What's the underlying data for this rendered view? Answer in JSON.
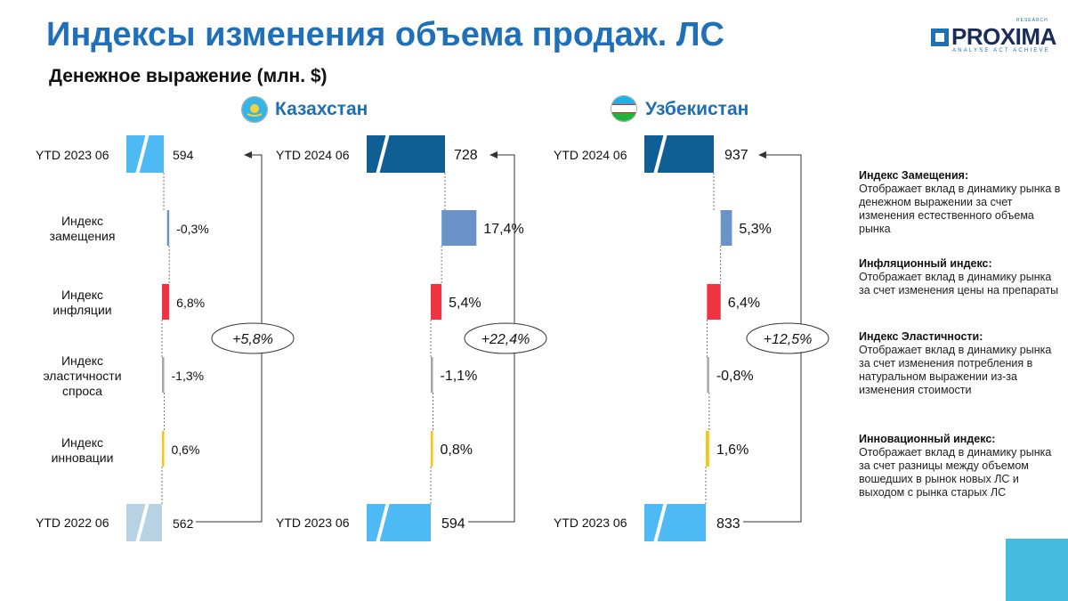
{
  "header": {
    "title": "Индексы изменения объема продаж. ЛС",
    "subtitle": "Денежное выражение (млн. $)"
  },
  "logo": {
    "text": "PROXIMA",
    "tagline": "ANALYSE ACT ACHIEVE",
    "superscript": "RESEARCH"
  },
  "row_labels": {
    "replacement": [
      "Индекс",
      "замещения"
    ],
    "inflation": [
      "Индекс",
      "инфляции"
    ],
    "elasticity": [
      "Индекс",
      "эластичности",
      "спроса"
    ],
    "innovation": [
      "Индекс",
      "инновации"
    ]
  },
  "colors": {
    "title": "#1f70b8",
    "start_bar": "#b7d3e3",
    "end_bar_kz": "#4dbaf5",
    "end_bar_dark": "#0f5f94",
    "end_bar_light": "#4dbaf5",
    "replacement": "#6c93c8",
    "inflation": "#ef3340",
    "elasticity": "#a6a6a6",
    "innovation": "#f5c518"
  },
  "chart_data": [
    {
      "type": "waterfall",
      "panel": "left",
      "categories": [
        "YTD 2022 06",
        "Индекс замещения",
        "Индекс инфляции",
        "Индекс эластичности спроса",
        "Индекс инновации",
        "YTD 2023 06"
      ],
      "start": {
        "label": "YTD 2022 06",
        "value": 562,
        "text": "562"
      },
      "end": {
        "label": "YTD 2023 06",
        "value": 594,
        "text": "594"
      },
      "indices": [
        {
          "key": "replacement",
          "value": -0.3,
          "text": "-0,3%"
        },
        {
          "key": "inflation",
          "value": 6.8,
          "text": "6,8%"
        },
        {
          "key": "elasticity",
          "value": -1.3,
          "text": "-1,3%"
        },
        {
          "key": "innovation",
          "value": 0.6,
          "text": "0,6%"
        }
      ],
      "total_change": "+5,8%"
    },
    {
      "type": "waterfall",
      "panel": "kazakhstan",
      "country": "Казахстан",
      "start": {
        "label": "YTD 2023 06",
        "value": 594,
        "text": "594"
      },
      "end": {
        "label": "YTD 2024 06",
        "value": 728,
        "text": "728"
      },
      "indices": [
        {
          "key": "replacement",
          "value": 17.4,
          "text": "17,4%"
        },
        {
          "key": "inflation",
          "value": 5.4,
          "text": "5,4%"
        },
        {
          "key": "elasticity",
          "value": -1.1,
          "text": "-1,1%"
        },
        {
          "key": "innovation",
          "value": 0.8,
          "text": "0,8%"
        }
      ],
      "total_change": "+22,4%"
    },
    {
      "type": "waterfall",
      "panel": "uzbekistan",
      "country": "Узбекистан",
      "start": {
        "label": "YTD 2023 06",
        "value": 833,
        "text": "833"
      },
      "end": {
        "label": "YTD 2024 06",
        "value": 937,
        "text": "937"
      },
      "indices": [
        {
          "key": "replacement",
          "value": 5.3,
          "text": "5,3%"
        },
        {
          "key": "inflation",
          "value": 6.4,
          "text": "6,4%"
        },
        {
          "key": "elasticity",
          "value": -0.8,
          "text": "-0,8%"
        },
        {
          "key": "innovation",
          "value": 1.6,
          "text": "1,6%"
        }
      ],
      "total_change": "+12,5%"
    }
  ],
  "legend": [
    {
      "title": "Индекс Замещения:",
      "text": "Отображает вклад в динамику рынка в денежном выражении за счет изменения естественного объема рынка"
    },
    {
      "title": "Инфляционный индекс:",
      "text": "Отображает вклад в динамику рынка за счет изменения цены на препараты"
    },
    {
      "title": "Индекс Эластичности:",
      "text": "Отображает вклад в динамику рынка за счет изменения потребления в натуральном выражении из-за изменения стоимости"
    },
    {
      "title": "Инновационный индекс:",
      "text": "Отображает вклад в динамику рынка за счет разницы между объемом вошедших в рынок новых ЛС и выходом с рынка старых ЛС"
    }
  ]
}
